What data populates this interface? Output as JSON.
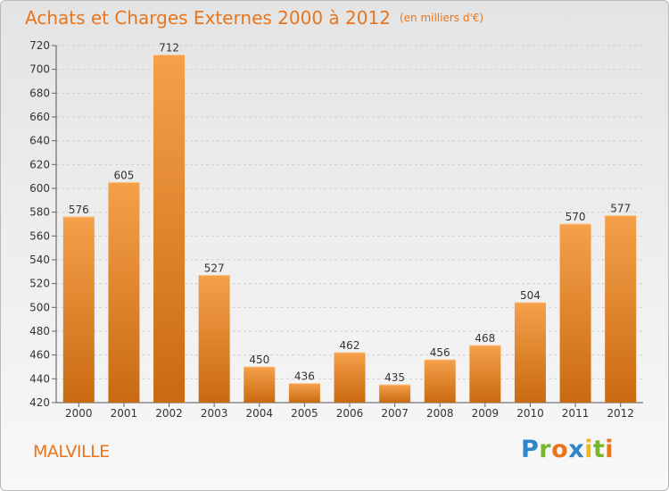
{
  "header": {
    "title": "Achats et Charges Externes 2000 à 2012",
    "subtitle": "(en milliers d'€)"
  },
  "footer": {
    "place": "MALVILLE",
    "logo_letters": [
      "P",
      "r",
      "o",
      "x",
      "i",
      "t",
      "i"
    ]
  },
  "colors": {
    "bar_top": "#f5a04a",
    "bar_bottom": "#c96a12",
    "title": "#e8751d",
    "grid": "#cfcfcf"
  },
  "chart_data": {
    "type": "bar",
    "title": "Achats et Charges Externes 2000 à 2012",
    "subtitle": "(en milliers d'€)",
    "categories": [
      "2000",
      "2001",
      "2002",
      "2003",
      "2004",
      "2005",
      "2006",
      "2007",
      "2008",
      "2009",
      "2010",
      "2011",
      "2012"
    ],
    "values": [
      576,
      605,
      712,
      527,
      450,
      436,
      462,
      435,
      456,
      468,
      504,
      570,
      577
    ],
    "ylim": [
      420,
      720
    ],
    "yticks": [
      420,
      440,
      460,
      480,
      500,
      520,
      540,
      560,
      580,
      600,
      620,
      640,
      660,
      680,
      700,
      720
    ],
    "grid": true,
    "legend": false
  }
}
